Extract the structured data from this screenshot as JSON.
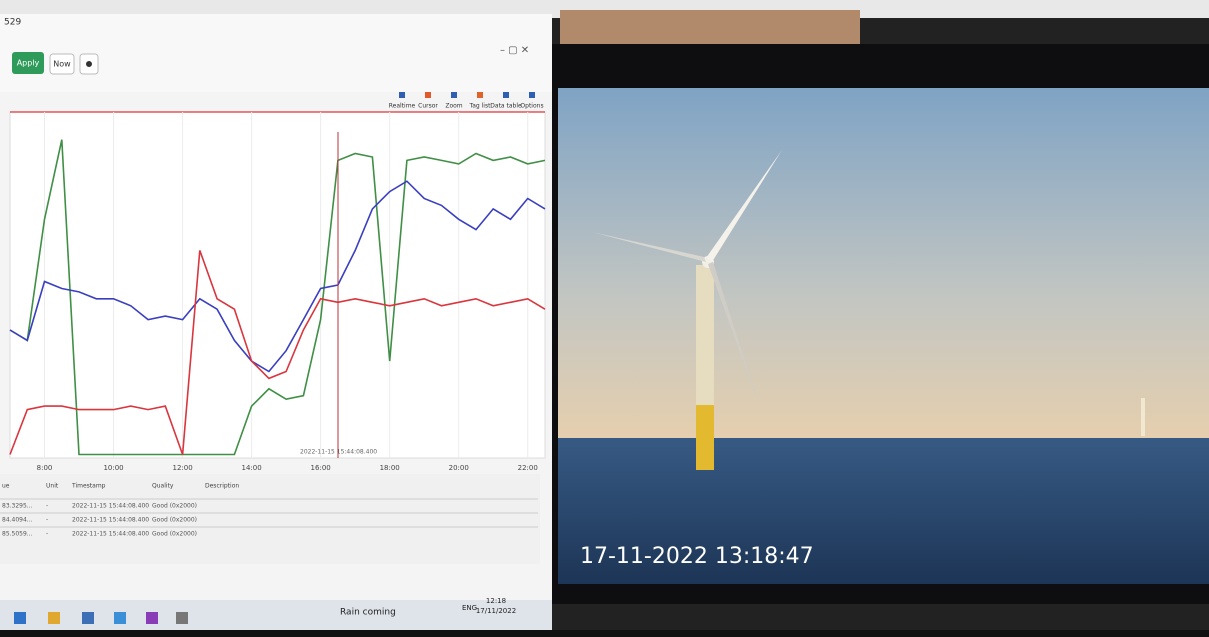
{
  "window": {
    "title": "529",
    "buttons": [
      "Apply",
      "Now"
    ]
  },
  "toolbar": [
    "Realtime",
    "Cursor",
    "Zoom",
    "Tag list",
    "Data table",
    "Options"
  ],
  "chart_data": {
    "type": "line",
    "x": [
      7,
      7.5,
      8,
      8.5,
      9,
      9.5,
      10,
      10.5,
      11,
      11.5,
      12,
      12.5,
      13,
      13.5,
      14,
      14.5,
      15,
      15.5,
      16,
      16.5,
      17,
      17.5,
      18,
      18.5,
      19,
      19.5,
      20,
      20.5,
      21,
      21.5,
      22,
      22.5
    ],
    "xlim": [
      7,
      22.5
    ],
    "xticks": [
      {
        "value": 8,
        "label": "8:00"
      },
      {
        "value": 10,
        "label": "10:00"
      },
      {
        "value": 12,
        "label": "12:00"
      },
      {
        "value": 14,
        "label": "14:00"
      },
      {
        "value": 16,
        "label": "16:00"
      },
      {
        "value": 18,
        "label": "18:00"
      },
      {
        "value": 20,
        "label": "20:00"
      },
      {
        "value": 22,
        "label": "22:00"
      }
    ],
    "ylim": [
      0,
      100
    ],
    "series": [
      {
        "color": "#3f8f45",
        "values": [
          37,
          34,
          69,
          92,
          1,
          1,
          1,
          1,
          1,
          1,
          1,
          1,
          1,
          1,
          15,
          20,
          17,
          18,
          40,
          86,
          88,
          87,
          28,
          86,
          87,
          86,
          85,
          88,
          86,
          87,
          85,
          86
        ]
      },
      {
        "color": "#3a3fc0",
        "values": [
          37,
          34,
          51,
          49,
          48,
          46,
          46,
          44,
          40,
          41,
          40,
          46,
          43,
          34,
          28,
          25,
          31,
          40,
          49,
          50,
          60,
          72,
          77,
          80,
          75,
          73,
          69,
          66,
          72,
          69,
          75,
          72
        ]
      },
      {
        "color": "#d9363e",
        "values": [
          1,
          14,
          15,
          15,
          14,
          14,
          14,
          15,
          14,
          15,
          1,
          60,
          46,
          43,
          28,
          23,
          25,
          37,
          46,
          45,
          46,
          45,
          44,
          45,
          46,
          44,
          45,
          46,
          44,
          45,
          46,
          43
        ]
      }
    ],
    "cursor_label": "2022-11-15 15:44:08.400"
  },
  "table": {
    "columns": [
      "ue",
      "Unit",
      "Timestamp",
      "Quality",
      "Description"
    ],
    "rows": [
      [
        "83.3295...",
        "-",
        "2022-11-15 15:44:08.400",
        "Good (0x2000)"
      ],
      [
        "84.4094...",
        "-",
        "2022-11-15 15:44:08.400",
        "Good (0x2000)"
      ],
      [
        "85.5059...",
        "-",
        "2022-11-15 15:44:08.400",
        "Good (0x2000)"
      ]
    ]
  },
  "taskbar": {
    "weather": "Rain coming",
    "lang": "ENG",
    "time": "12:18",
    "date": "17/11/2022"
  },
  "camera": {
    "timestamp": "17-11-2022 13:18:47"
  }
}
